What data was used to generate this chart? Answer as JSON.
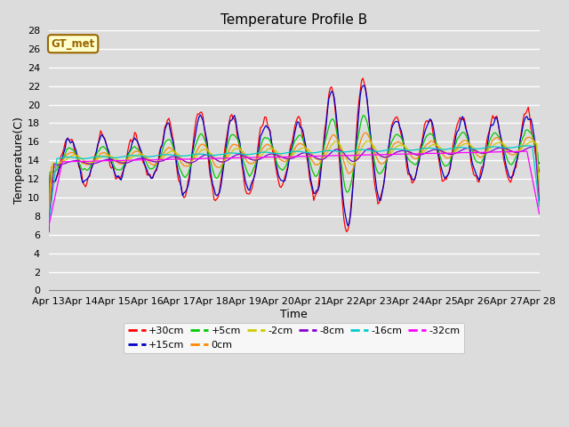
{
  "title": "Temperature Profile B",
  "xlabel": "Time",
  "ylabel": "Temperature(C)",
  "ylim": [
    0,
    28
  ],
  "yticks": [
    0,
    2,
    4,
    6,
    8,
    10,
    12,
    14,
    16,
    18,
    20,
    22,
    24,
    26,
    28
  ],
  "xtick_labels": [
    "Apr 13",
    "Apr 14",
    "Apr 15",
    "Apr 16",
    "Apr 17",
    "Apr 18",
    "Apr 19",
    "Apr 20",
    "Apr 21",
    "Apr 22",
    "Apr 23",
    "Apr 24",
    "Apr 25",
    "Apr 26",
    "Apr 27",
    "Apr 28"
  ],
  "series_colors": {
    "+30cm": "#ff0000",
    "+15cm": "#0000cc",
    "+5cm": "#00cc00",
    "0cm": "#ff8800",
    "-2cm": "#cccc00",
    "-8cm": "#8800cc",
    "-16cm": "#00cccc",
    "-32cm": "#ff00ff"
  },
  "legend_label": "GT_met",
  "legend_bg": "#ffffcc",
  "legend_border": "#996600",
  "plot_bg": "#dcdcdc",
  "grid_color": "#ffffff",
  "n_days": 15,
  "title_fontsize": 11,
  "axis_fontsize": 9,
  "tick_fontsize": 8
}
